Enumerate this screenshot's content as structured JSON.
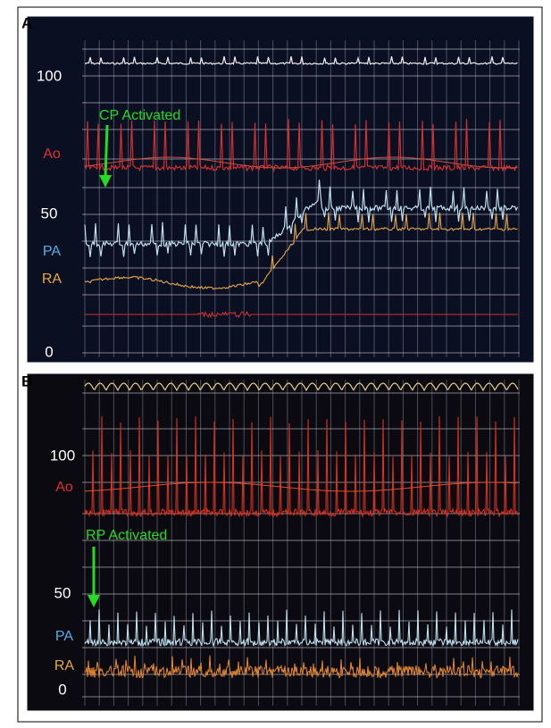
{
  "panels": [
    {
      "label": "A",
      "ticks": [
        "100",
        "50",
        "0"
      ],
      "channels": [
        "Ao",
        "PA",
        "RA"
      ],
      "annotation": "CP Activated"
    },
    {
      "label": "B",
      "ticks": [
        "100",
        "50",
        "0"
      ],
      "channels": [
        "Ao",
        "PA",
        "RA"
      ],
      "annotation": "RP Activated"
    }
  ]
}
